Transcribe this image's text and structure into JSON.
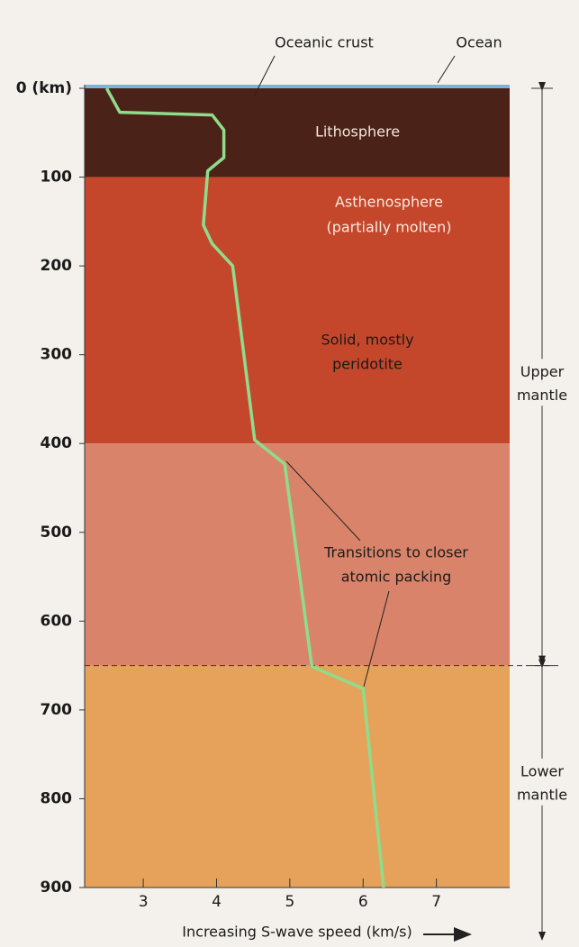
{
  "chart_data": {
    "type": "line",
    "x_label": "Increasing S-wave speed (km/s)",
    "xlim": [
      2.2,
      8.0
    ],
    "xticks": [
      3,
      4,
      5,
      6,
      7
    ],
    "ylim": [
      0,
      900
    ],
    "y_inverted": true,
    "yticks": [
      {
        "value": 0,
        "label": "0 (km)"
      },
      100,
      200,
      300,
      400,
      500,
      600,
      700,
      800,
      900
    ],
    "line": {
      "color": "#8fdc8c",
      "x": [
        2.5,
        2.68,
        3.94,
        4.1,
        4.1,
        3.88,
        3.82,
        3.94,
        4.22,
        4.52,
        4.93,
        5.3,
        6.0,
        6.28
      ],
      "y": [
        0,
        27,
        30,
        47,
        78,
        93,
        154,
        175,
        200,
        396,
        423,
        651,
        676,
        900
      ]
    },
    "layers": [
      {
        "top": 0,
        "bottom": 100,
        "color": "#4a2218",
        "label_lines": [
          "Lithosphere"
        ],
        "label_color": "#f3e6dc"
      },
      {
        "top": 100,
        "bottom": 400,
        "color": "#c4472b",
        "label_lines": [
          "Asthenosphere",
          "(partially molten)"
        ],
        "label_color": "#f7e9df"
      },
      {
        "top": 400,
        "bottom": 650,
        "color": "#d9846a",
        "label_lines": [],
        "label_color": "#1a1a1a"
      },
      {
        "top": 650,
        "bottom": 900,
        "color": "#e6a25a",
        "label_lines": [],
        "label_color": "#1a1a1a"
      }
    ],
    "notes": [
      {
        "lines": [
          "Solid, mostly",
          "peridotite"
        ]
      },
      {
        "lines": [
          "Transitions to closer",
          "atomic packing"
        ]
      }
    ],
    "surface_labels": [
      "Oceanic crust",
      "Ocean"
    ],
    "boundary": 650,
    "mantle": [
      {
        "top": 0,
        "bottom": 650,
        "label_lines": [
          "Upper",
          "mantle"
        ]
      },
      {
        "top": 650,
        "bottom": 900,
        "label_lines": [
          "Lower",
          "mantle"
        ]
      }
    ]
  }
}
